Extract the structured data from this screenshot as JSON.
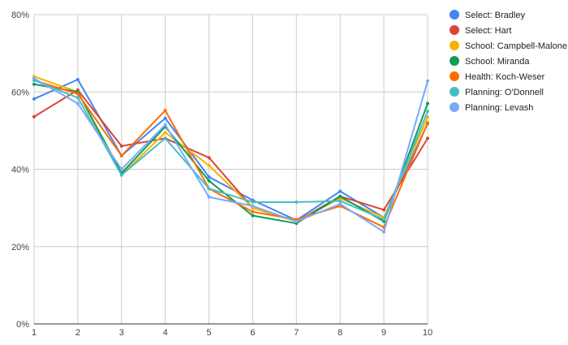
{
  "chart_data": {
    "type": "line",
    "title": "",
    "xlabel": "",
    "ylabel": "",
    "x": [
      1,
      2,
      3,
      4,
      5,
      6,
      7,
      8,
      9,
      10
    ],
    "x_ticks": [
      "1",
      "2",
      "3",
      "4",
      "5",
      "6",
      "7",
      "8",
      "9",
      "10"
    ],
    "ylim": [
      0,
      80
    ],
    "y_ticks": [
      {
        "value": 0,
        "label": "0%"
      },
      {
        "value": 20,
        "label": "20%"
      },
      {
        "value": 40,
        "label": "40%"
      },
      {
        "value": 60,
        "label": "60%"
      },
      {
        "value": 80,
        "label": "80%"
      }
    ],
    "grid": true,
    "legend_position": "right",
    "series": [
      {
        "name": "Select: Bradley",
        "color": "#4285f4",
        "values": [
          58.2,
          63.2,
          43.5,
          53.2,
          38.0,
          32.0,
          26.8,
          34.3,
          27.5,
          51.8
        ]
      },
      {
        "name": "Select: Hart",
        "color": "#db4437",
        "values": [
          53.6,
          60.5,
          46.0,
          48.0,
          43.0,
          30.0,
          26.5,
          33.0,
          29.5,
          48.0
        ]
      },
      {
        "name": "School: Campbell-Malone",
        "color": "#f4b400",
        "values": [
          64.0,
          60.0,
          38.5,
          49.5,
          41.0,
          30.0,
          26.5,
          32.5,
          27.5,
          53.5
        ]
      },
      {
        "name": "School: Miranda",
        "color": "#0f9d58",
        "values": [
          62.0,
          60.0,
          39.0,
          51.0,
          37.0,
          28.0,
          26.0,
          33.0,
          26.5,
          57.0
        ]
      },
      {
        "name": "Health: Koch-Weser",
        "color": "#ff6d01",
        "values": [
          63.0,
          59.5,
          43.5,
          55.2,
          35.0,
          29.0,
          27.0,
          30.5,
          25.0,
          52.0
        ]
      },
      {
        "name": "Planning: O'Donnell",
        "color": "#46bdc6",
        "values": [
          63.0,
          58.5,
          38.5,
          48.0,
          35.0,
          31.5,
          31.5,
          31.8,
          27.0,
          55.0
        ]
      },
      {
        "name": "Planning: Levash",
        "color": "#7baaf7",
        "values": [
          63.5,
          57.0,
          40.0,
          51.5,
          32.8,
          30.5,
          26.5,
          31.0,
          23.8,
          62.8
        ]
      }
    ]
  }
}
